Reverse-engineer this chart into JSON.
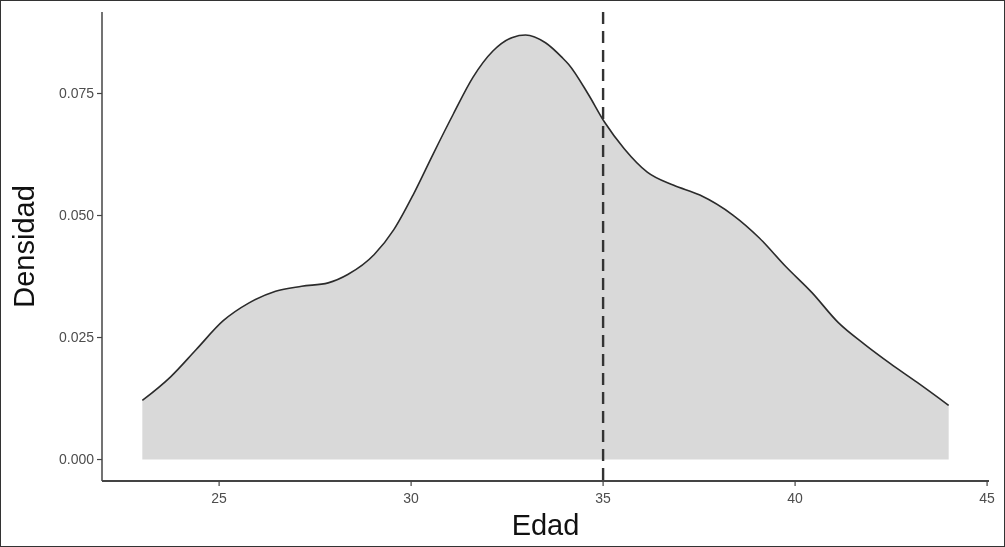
{
  "chart_data": {
    "type": "area",
    "xlabel": "Edad",
    "ylabel": "Densidad",
    "x": [
      23.0,
      23.73,
      24.41,
      25.1,
      25.78,
      26.47,
      27.15,
      27.84,
      28.35,
      29.04,
      29.55,
      30.07,
      30.58,
      31.1,
      31.61,
      32.13,
      32.64,
      32.98,
      33.5,
      33.93,
      34.1,
      34.61,
      35.04,
      35.55,
      36.15,
      36.84,
      37.52,
      38.38,
      39.07,
      39.75,
      40.44,
      41.12,
      41.81,
      42.49,
      43.18,
      44.0
    ],
    "series": [
      {
        "color": "#d9d9d9",
        "values": [
          0.0121,
          0.0169,
          0.0226,
          0.0284,
          0.0321,
          0.0345,
          0.0355,
          0.0362,
          0.0379,
          0.042,
          0.0471,
          0.0545,
          0.0627,
          0.0708,
          0.0783,
          0.0837,
          0.0865,
          0.087,
          0.0854,
          0.0824,
          0.081,
          0.0749,
          0.0691,
          0.0637,
          0.0589,
          0.0562,
          0.0542,
          0.0501,
          0.0454,
          0.0396,
          0.0342,
          0.0281,
          0.0236,
          0.0196,
          0.0158,
          0.0111
        ]
      }
    ],
    "xlim": [
      21.95,
      45.05
    ],
    "xticks": [
      25,
      30,
      35,
      40,
      45
    ],
    "ylim": [
      -0.0044,
      0.0917
    ],
    "yticks": [
      {
        "value": 0,
        "label": "0.000"
      },
      {
        "value": 0.025,
        "label": "0.025"
      },
      {
        "value": 0.05,
        "label": "0.050"
      },
      {
        "value": 0.075,
        "label": "0.075"
      }
    ],
    "ref_lines": [
      {
        "axis": "x",
        "value": 35,
        "color": "#333333",
        "line_style": "dashed"
      }
    ]
  }
}
